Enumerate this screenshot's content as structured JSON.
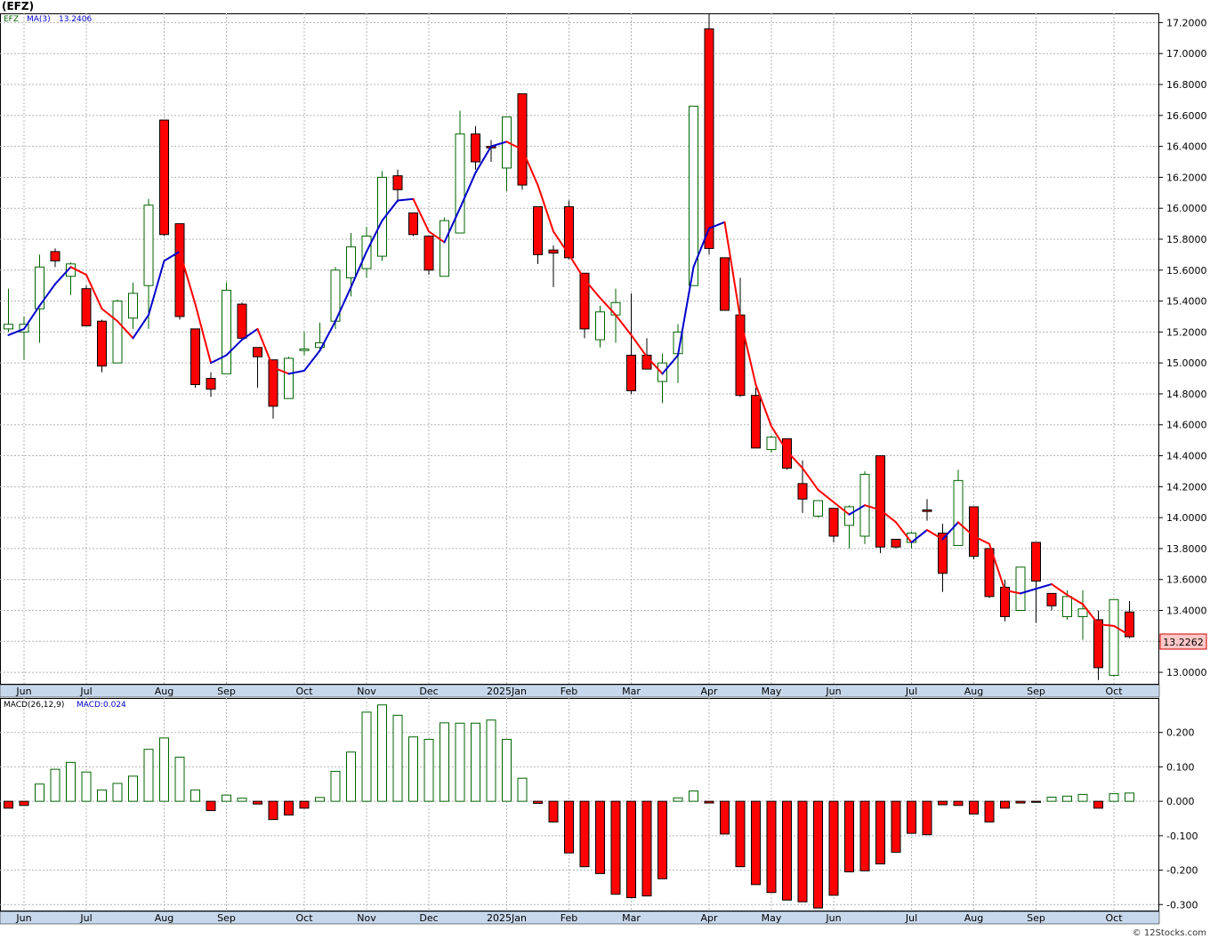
{
  "title": "(EFZ)",
  "price_legend": {
    "symbol": "EFZ",
    "ma_label": "MA(3)",
    "ma_value": "13.2406"
  },
  "macd_legend": {
    "params": "MACD(26,12,9)",
    "value_label": "MACD:0.024"
  },
  "last_price_label": "13.2262",
  "watermark": "© 12Stocks.com",
  "colors": {
    "up": "#006400",
    "down": "#ff0000",
    "ma_up": "#0000cc",
    "ma_down": "#ff0000",
    "grid": "#b4b4b4",
    "axis_band": "#c8d8ec",
    "last_tag_bg": "#ffc8c8"
  },
  "chart_data": [
    {
      "type": "candlestick",
      "name": "EFZ",
      "period": "weekly",
      "ylim": [
        12.92,
        17.26
      ],
      "y_ticks": [
        "13.0000",
        "13.2000",
        "13.4000",
        "13.6000",
        "13.8000",
        "14.0000",
        "14.2000",
        "14.4000",
        "14.6000",
        "14.8000",
        "15.0000",
        "15.2000",
        "15.4000",
        "15.6000",
        "15.8000",
        "16.0000",
        "16.2000",
        "16.4000",
        "16.6000",
        "16.8000",
        "17.0000",
        "17.2000"
      ],
      "x_tick_labels": [
        {
          "label": "Jun",
          "index": 1
        },
        {
          "label": "Jul",
          "index": 5
        },
        {
          "label": "Aug",
          "index": 10
        },
        {
          "label": "Sep",
          "index": 14
        },
        {
          "label": "Oct",
          "index": 19
        },
        {
          "label": "Nov",
          "index": 23
        },
        {
          "label": "Dec",
          "index": 27
        },
        {
          "label": "2025Jan",
          "index": 32
        },
        {
          "label": "Feb",
          "index": 36
        },
        {
          "label": "Mar",
          "index": 40
        },
        {
          "label": "Apr",
          "index": 45
        },
        {
          "label": "May",
          "index": 49
        },
        {
          "label": "Jun",
          "index": 53
        },
        {
          "label": "Jul",
          "index": 58
        },
        {
          "label": "Aug",
          "index": 62
        },
        {
          "label": "Sep",
          "index": 66
        },
        {
          "label": "Oct",
          "index": 71
        }
      ],
      "ohlc": [
        [
          15.22,
          15.48,
          15.2,
          15.25
        ],
        [
          15.2,
          15.3,
          15.02,
          15.25
        ],
        [
          15.35,
          15.7,
          15.13,
          15.62
        ],
        [
          15.72,
          15.74,
          15.62,
          15.66
        ],
        [
          15.56,
          15.65,
          15.44,
          15.64
        ],
        [
          15.48,
          15.5,
          15.24,
          15.24
        ],
        [
          15.27,
          15.28,
          14.94,
          14.98
        ],
        [
          15.0,
          15.41,
          15.0,
          15.4
        ],
        [
          15.29,
          15.52,
          15.22,
          15.45
        ],
        [
          15.5,
          16.06,
          15.22,
          16.02
        ],
        [
          16.57,
          16.57,
          15.82,
          15.83
        ],
        [
          15.9,
          15.9,
          15.28,
          15.3
        ],
        [
          15.22,
          15.22,
          14.84,
          14.86
        ],
        [
          14.9,
          14.94,
          14.78,
          14.83
        ],
        [
          14.93,
          15.52,
          14.93,
          15.47
        ],
        [
          15.38,
          15.39,
          15.15,
          15.16
        ],
        [
          15.1,
          15.1,
          14.84,
          15.04
        ],
        [
          15.02,
          15.02,
          14.64,
          14.72
        ],
        [
          14.77,
          15.04,
          14.77,
          15.03
        ],
        [
          15.08,
          15.2,
          15.05,
          15.09
        ],
        [
          15.1,
          15.26,
          15.08,
          15.13
        ],
        [
          15.27,
          15.62,
          15.22,
          15.6
        ],
        [
          15.55,
          15.84,
          15.43,
          15.75
        ],
        [
          15.61,
          15.88,
          15.55,
          15.82
        ],
        [
          15.69,
          16.24,
          15.66,
          16.2
        ],
        [
          16.21,
          16.25,
          16.04,
          16.12
        ],
        [
          15.97,
          15.97,
          15.82,
          15.83
        ],
        [
          15.82,
          15.82,
          15.57,
          15.6
        ],
        [
          15.56,
          15.94,
          15.56,
          15.92
        ],
        [
          15.84,
          16.63,
          15.84,
          16.48
        ],
        [
          16.48,
          16.53,
          16.25,
          16.3
        ],
        [
          16.4,
          16.44,
          16.3,
          16.39
        ],
        [
          16.26,
          16.58,
          16.11,
          16.59
        ],
        [
          16.74,
          16.74,
          16.12,
          16.15
        ],
        [
          16.01,
          16.01,
          15.64,
          15.7
        ],
        [
          15.73,
          15.76,
          15.49,
          15.71
        ],
        [
          16.01,
          16.05,
          15.67,
          15.68
        ],
        [
          15.58,
          15.58,
          15.16,
          15.22
        ],
        [
          15.15,
          15.37,
          15.1,
          15.33
        ],
        [
          15.31,
          15.48,
          15.13,
          15.39
        ],
        [
          15.05,
          15.45,
          14.8,
          14.82
        ],
        [
          15.05,
          15.16,
          14.96,
          14.96
        ],
        [
          14.88,
          15.06,
          14.74,
          15.0
        ],
        [
          15.06,
          15.25,
          14.87,
          15.2
        ],
        [
          15.5,
          16.66,
          15.5,
          16.66
        ],
        [
          17.16,
          17.26,
          15.7,
          15.74
        ],
        [
          15.68,
          15.68,
          15.34,
          15.34
        ],
        [
          15.31,
          15.55,
          14.78,
          14.79
        ],
        [
          14.79,
          14.84,
          14.45,
          14.45
        ],
        [
          14.44,
          14.53,
          14.42,
          14.52
        ],
        [
          14.51,
          14.51,
          14.31,
          14.32
        ],
        [
          14.22,
          14.37,
          14.03,
          14.12
        ],
        [
          14.01,
          14.11,
          14.0,
          14.11
        ],
        [
          14.06,
          14.06,
          13.84,
          13.88
        ],
        [
          13.95,
          14.08,
          13.8,
          14.07
        ],
        [
          13.88,
          14.3,
          13.83,
          14.28
        ],
        [
          14.4,
          14.4,
          13.77,
          13.81
        ],
        [
          13.86,
          13.86,
          13.8,
          13.81
        ],
        [
          13.84,
          13.91,
          13.8,
          13.9
        ],
        [
          14.05,
          14.12,
          13.98,
          14.04
        ],
        [
          13.9,
          13.96,
          13.52,
          13.64
        ],
        [
          13.82,
          14.31,
          13.82,
          14.24
        ],
        [
          14.07,
          14.07,
          13.73,
          13.75
        ],
        [
          13.8,
          13.8,
          13.48,
          13.49
        ],
        [
          13.55,
          13.6,
          13.33,
          13.36
        ],
        [
          13.4,
          13.68,
          13.4,
          13.68
        ],
        [
          13.84,
          13.84,
          13.32,
          13.59
        ],
        [
          13.51,
          13.51,
          13.4,
          13.43
        ],
        [
          13.36,
          13.53,
          13.34,
          13.49
        ],
        [
          13.36,
          13.53,
          13.21,
          13.41
        ],
        [
          13.34,
          13.4,
          12.95,
          13.03
        ],
        [
          12.98,
          13.47,
          12.97,
          13.47
        ],
        [
          13.39,
          13.46,
          13.22,
          13.23
        ]
      ],
      "ma3": [
        15.18,
        15.22,
        15.37,
        15.51,
        15.62,
        15.57,
        15.35,
        15.27,
        15.16,
        15.31,
        15.66,
        15.72,
        15.38,
        15.0,
        15.05,
        15.15,
        15.22,
        14.97,
        14.93,
        14.95,
        15.08,
        15.27,
        15.49,
        15.72,
        15.92,
        16.05,
        16.06,
        15.85,
        15.78,
        16.0,
        16.23,
        16.4,
        16.43,
        16.38,
        16.15,
        15.85,
        15.7,
        15.54,
        15.42,
        15.31,
        15.18,
        15.04,
        14.93,
        15.05,
        15.62,
        15.87,
        15.91,
        15.29,
        14.86,
        14.59,
        14.43,
        14.32,
        14.18,
        14.1,
        14.02,
        14.08,
        14.05,
        13.97,
        13.84,
        13.92,
        13.86,
        13.97,
        13.88,
        13.83,
        13.53,
        13.51,
        13.54,
        13.57,
        13.5,
        13.44,
        13.31,
        13.3,
        13.24
      ]
    },
    {
      "type": "bar",
      "name": "MACD(26,12,9)",
      "ylim": [
        -0.32,
        0.3
      ],
      "y_ticks": [
        "0.200",
        "0.100",
        "0.000",
        "-0.100",
        "-0.200",
        "-0.300"
      ],
      "values": [
        -0.02,
        -0.012,
        0.05,
        0.093,
        0.113,
        0.085,
        0.033,
        0.052,
        0.073,
        0.151,
        0.184,
        0.128,
        0.033,
        -0.027,
        0.018,
        0.009,
        -0.008,
        -0.053,
        -0.04,
        -0.02,
        0.011,
        0.087,
        0.143,
        0.259,
        0.28,
        0.25,
        0.187,
        0.18,
        0.228,
        0.227,
        0.227,
        0.236,
        0.18,
        0.067,
        -0.006,
        -0.06,
        -0.15,
        -0.19,
        -0.21,
        -0.27,
        -0.28,
        -0.275,
        -0.225,
        0.01,
        0.03,
        -0.005,
        -0.095,
        -0.19,
        -0.242,
        -0.265,
        -0.287,
        -0.292,
        -0.31,
        -0.273,
        -0.205,
        -0.202,
        -0.182,
        -0.148,
        -0.093,
        -0.097,
        -0.01,
        -0.012,
        -0.037,
        -0.06,
        -0.02,
        -0.005,
        -0.003,
        0.012,
        0.015,
        0.02,
        -0.02,
        0.022,
        0.024
      ]
    }
  ]
}
